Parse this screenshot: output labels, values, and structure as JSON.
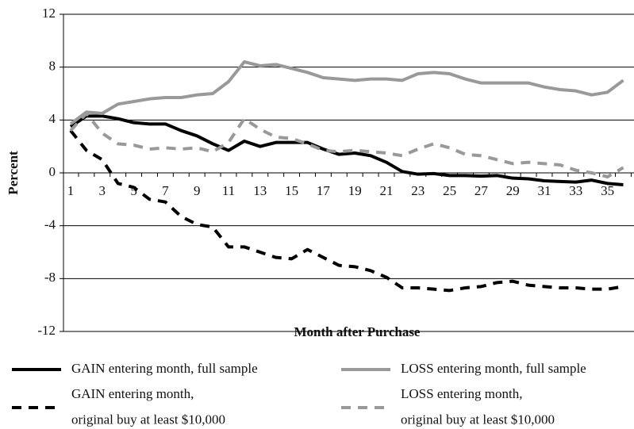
{
  "chart_data": {
    "type": "line",
    "xlabel": "Month after Purchase",
    "ylabel": "Percent",
    "categories": [
      "1",
      null,
      "3",
      null,
      "5",
      null,
      "7",
      null,
      "9",
      null,
      "11",
      null,
      "13",
      null,
      "15",
      null,
      "17",
      null,
      "19",
      null,
      "21",
      null,
      "23",
      null,
      "25",
      null,
      "27",
      null,
      "29",
      null,
      "31",
      null,
      "33",
      null,
      "35",
      null
    ],
    "ylim": [
      -12,
      12
    ],
    "yticks": [
      -12,
      -8,
      -4,
      0,
      4,
      8,
      12
    ],
    "grid": true,
    "series": [
      {
        "name": "GAIN entering month, full sample",
        "color": "#000000",
        "dash": false,
        "values": [
          3.5,
          4.3,
          4.3,
          4.1,
          3.8,
          3.7,
          3.7,
          3.2,
          2.8,
          2.2,
          1.7,
          2.4,
          2.0,
          2.3,
          2.3,
          2.3,
          1.8,
          1.4,
          1.5,
          1.3,
          0.8,
          0.1,
          -0.1,
          -0.05,
          -0.2,
          -0.2,
          -0.25,
          -0.2,
          -0.4,
          -0.45,
          -0.6,
          -0.65,
          -0.7,
          -0.55,
          -0.8,
          -0.9
        ]
      },
      {
        "name": "LOSS entering month, full sample",
        "color": "#999999",
        "dash": false,
        "values": [
          3.7,
          4.6,
          4.5,
          5.2,
          5.4,
          5.6,
          5.7,
          5.7,
          5.9,
          6.0,
          6.9,
          8.4,
          8.1,
          8.2,
          7.9,
          7.6,
          7.2,
          7.1,
          7.0,
          7.1,
          7.1,
          7.0,
          7.5,
          7.6,
          7.5,
          7.1,
          6.8,
          6.8,
          6.8,
          6.8,
          6.5,
          6.3,
          6.2,
          5.9,
          6.1,
          7.0
        ]
      },
      {
        "name": "GAIN entering month,\noriginal buy at least $10,000",
        "color": "#000000",
        "dash": true,
        "values": [
          3.2,
          1.7,
          1.0,
          -0.8,
          -1.1,
          -2.0,
          -2.2,
          -3.3,
          -3.9,
          -4.1,
          -5.6,
          -5.6,
          -6.0,
          -6.4,
          -6.5,
          -5.8,
          -6.4,
          -7.0,
          -7.1,
          -7.4,
          -7.9,
          -8.7,
          -8.7,
          -8.8,
          -8.9,
          -8.7,
          -8.6,
          -8.3,
          -8.2,
          -8.5,
          -8.6,
          -8.7,
          -8.7,
          -8.8,
          -8.8,
          -8.6
        ]
      },
      {
        "name": "LOSS entering month,\noriginal buy at least $10,000",
        "color": "#999999",
        "dash": true,
        "values": [
          3.2,
          4.5,
          3.0,
          2.2,
          2.1,
          1.8,
          1.9,
          1.8,
          1.9,
          1.6,
          2.3,
          4.1,
          3.3,
          2.7,
          2.6,
          2.2,
          1.7,
          1.6,
          1.7,
          1.6,
          1.5,
          1.3,
          1.8,
          2.2,
          1.9,
          1.4,
          1.3,
          1.0,
          0.7,
          0.8,
          0.7,
          0.6,
          0.2,
          0.0,
          -0.3,
          0.4
        ]
      }
    ]
  }
}
